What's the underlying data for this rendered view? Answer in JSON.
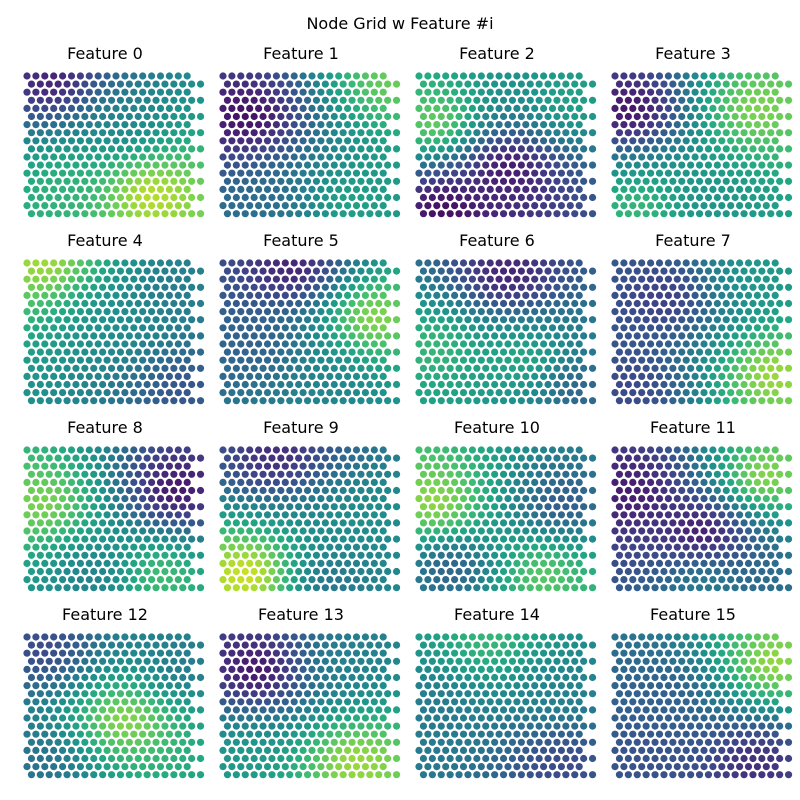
{
  "figure": {
    "title": "Node Grid w Feature #i",
    "background": "#ffffff"
  },
  "chart_data": {
    "type": "heatmap",
    "grid": "hexagonal",
    "rows": 18,
    "cols": 20,
    "colormap": "viridis",
    "value_range": [
      0,
      1
    ],
    "axes_visible": false,
    "panels": [
      {
        "title": "Feature 0",
        "blobs": [
          [
            0.15,
            0.05,
            0.05
          ],
          [
            0.7,
            0.85,
            0.95
          ],
          [
            0.55,
            0.35,
            0.45
          ],
          [
            0.2,
            0.8,
            0.65
          ]
        ]
      },
      {
        "title": "Feature 1",
        "blobs": [
          [
            0.15,
            0.3,
            0.0
          ],
          [
            0.95,
            0.05,
            0.8
          ],
          [
            0.7,
            0.9,
            0.6
          ],
          [
            0.3,
            0.9,
            0.35
          ]
        ]
      },
      {
        "title": "Feature 2",
        "blobs": [
          [
            0.1,
            0.35,
            0.85
          ],
          [
            0.5,
            0.65,
            0.0
          ],
          [
            0.15,
            0.95,
            0.0
          ],
          [
            0.85,
            0.2,
            0.6
          ]
        ]
      },
      {
        "title": "Feature 3",
        "blobs": [
          [
            0.1,
            0.25,
            0.0
          ],
          [
            0.8,
            0.25,
            0.85
          ],
          [
            0.5,
            0.9,
            0.5
          ],
          [
            0.15,
            0.95,
            0.7
          ]
        ]
      },
      {
        "title": "Feature 4",
        "blobs": [
          [
            0.1,
            0.0,
            0.9
          ],
          [
            0.5,
            0.4,
            0.5
          ],
          [
            0.9,
            0.9,
            0.25
          ],
          [
            0.8,
            0.2,
            0.4
          ]
        ]
      },
      {
        "title": "Feature 5",
        "blobs": [
          [
            0.4,
            0.05,
            0.05
          ],
          [
            0.85,
            0.4,
            0.9
          ],
          [
            0.2,
            0.6,
            0.3
          ],
          [
            0.6,
            0.9,
            0.45
          ]
        ]
      },
      {
        "title": "Feature 6",
        "blobs": [
          [
            0.5,
            0.1,
            0.05
          ],
          [
            0.1,
            0.6,
            0.7
          ],
          [
            0.6,
            0.7,
            0.65
          ],
          [
            0.9,
            0.9,
            0.3
          ]
        ]
      },
      {
        "title": "Feature 7",
        "blobs": [
          [
            0.3,
            0.25,
            0.15
          ],
          [
            0.9,
            0.8,
            0.9
          ],
          [
            0.1,
            0.9,
            0.2
          ],
          [
            0.8,
            0.1,
            0.55
          ]
        ]
      },
      {
        "title": "Feature 8",
        "blobs": [
          [
            0.85,
            0.3,
            0.0
          ],
          [
            0.1,
            0.4,
            0.85
          ],
          [
            0.75,
            0.9,
            0.75
          ],
          [
            0.4,
            0.9,
            0.4
          ]
        ]
      },
      {
        "title": "Feature 9",
        "blobs": [
          [
            0.3,
            0.05,
            0.1
          ],
          [
            0.15,
            0.9,
            1.0
          ],
          [
            0.8,
            0.5,
            0.5
          ],
          [
            0.6,
            0.95,
            0.35
          ]
        ]
      },
      {
        "title": "Feature 10",
        "blobs": [
          [
            0.1,
            0.4,
            0.9
          ],
          [
            0.8,
            0.4,
            0.25
          ],
          [
            0.7,
            0.9,
            0.8
          ],
          [
            0.2,
            0.85,
            0.25
          ]
        ]
      },
      {
        "title": "Feature 11",
        "blobs": [
          [
            0.1,
            0.3,
            0.05
          ],
          [
            0.85,
            0.2,
            0.9
          ],
          [
            0.5,
            0.6,
            0.0
          ],
          [
            0.5,
            0.95,
            0.45
          ]
        ]
      },
      {
        "title": "Feature 12",
        "blobs": [
          [
            0.1,
            0.1,
            0.2
          ],
          [
            0.55,
            0.6,
            0.9
          ],
          [
            0.9,
            0.2,
            0.4
          ],
          [
            0.1,
            0.9,
            0.35
          ]
        ]
      },
      {
        "title": "Feature 13",
        "blobs": [
          [
            0.2,
            0.25,
            0.0
          ],
          [
            0.75,
            0.9,
            0.9
          ],
          [
            0.7,
            0.2,
            0.45
          ],
          [
            0.1,
            0.85,
            0.55
          ]
        ]
      },
      {
        "title": "Feature 14",
        "blobs": [
          [
            0.4,
            0.05,
            0.7
          ],
          [
            0.1,
            0.5,
            0.4
          ],
          [
            0.8,
            0.9,
            0.2
          ],
          [
            0.8,
            0.4,
            0.45
          ]
        ]
      },
      {
        "title": "Feature 15",
        "blobs": [
          [
            0.9,
            0.2,
            0.9
          ],
          [
            0.3,
            0.4,
            0.3
          ],
          [
            0.8,
            0.9,
            0.1
          ],
          [
            0.2,
            0.9,
            0.25
          ]
        ]
      }
    ]
  }
}
